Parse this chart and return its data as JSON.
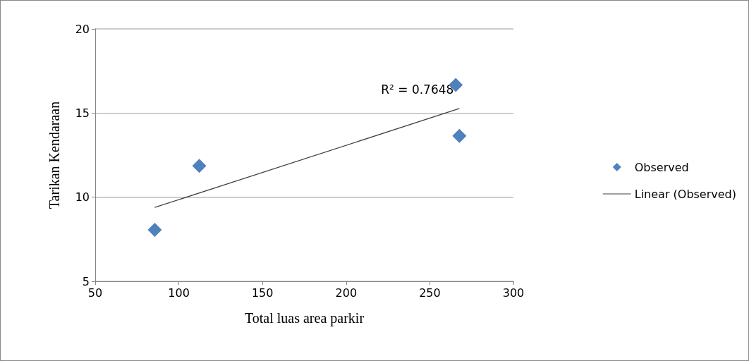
{
  "chart_data": {
    "type": "scatter",
    "xlabel": "Total luas area parkir",
    "ylabel": "Tarikan Kendaraan",
    "series": [
      {
        "name": "Observed",
        "color": "#4f81bd",
        "marker": "diamond",
        "x": [
          85.6,
          112.2,
          265.5,
          267.7
        ],
        "values": [
          8.06,
          11.86,
          16.67,
          13.64
        ]
      },
      {
        "name": "Linear (Observed)",
        "type": "line",
        "color": "#404040",
        "marker": "none",
        "line_style": "solid",
        "x": [
          85.6,
          267.7
        ],
        "values": [
          9.39,
          15.27
        ]
      }
    ],
    "annotations": [
      "R² = 0.7648"
    ],
    "xlim": [
      50,
      300
    ],
    "xticks": [
      50,
      100,
      150,
      200,
      250,
      300
    ],
    "ylim": [
      5,
      20
    ],
    "yticks": [
      5,
      10,
      15,
      20
    ],
    "grid": "y",
    "legend": "right"
  }
}
